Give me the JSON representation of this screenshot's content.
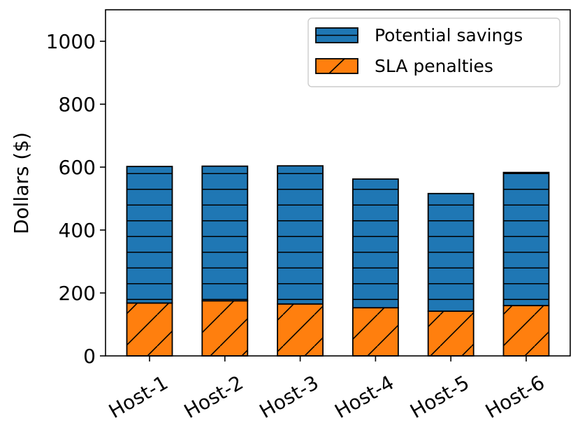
{
  "chart_data": {
    "type": "bar",
    "stacked": true,
    "title": "",
    "xlabel": "",
    "ylabel": "Dollars ($)",
    "ylim": [
      0,
      1100
    ],
    "yticks": [
      0,
      200,
      400,
      600,
      800,
      1000
    ],
    "categories": [
      "Host-1",
      "Host-2",
      "Host-3",
      "Host-4",
      "Host-5",
      "Host-6"
    ],
    "series": [
      {
        "name": "SLA penalties",
        "color": "#ff7f0e",
        "hatch": "diagonal",
        "values": [
          168,
          175,
          165,
          153,
          142,
          160
        ]
      },
      {
        "name": "Potential savings",
        "color": "#1f77b4",
        "hatch": "horizontal",
        "values": [
          434,
          428,
          439,
          409,
          374,
          423
        ]
      }
    ],
    "legend": {
      "position": "top-right",
      "order": [
        "Potential savings",
        "SLA penalties"
      ]
    },
    "grid": false
  }
}
